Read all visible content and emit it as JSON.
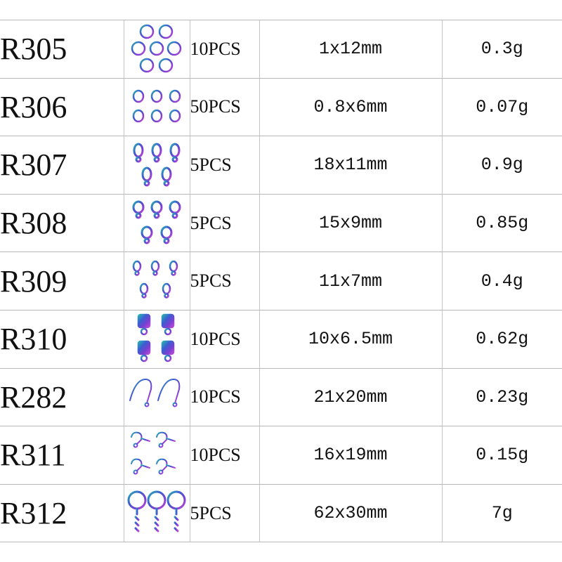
{
  "colors": {
    "rainbow": [
      "#3a7bd5",
      "#7b3fd1",
      "#c04bd6",
      "#2bb5b0",
      "#3a5fd0"
    ]
  },
  "rows": [
    {
      "code": "R305",
      "icon": "jump-ring-icon",
      "qty": "10PCS",
      "size": "1x12mm",
      "weight": "0.3g"
    },
    {
      "code": "R306",
      "icon": "small-jump-ring-icon",
      "qty": "50PCS",
      "size": "0.8x6mm",
      "weight": "0.07g"
    },
    {
      "code": "R307",
      "icon": "lobster-clasp-icon",
      "qty": "5PCS",
      "size": "18x11mm",
      "weight": "0.9g"
    },
    {
      "code": "R308",
      "icon": "lobster-clasp-icon",
      "qty": "5PCS",
      "size": "15x9mm",
      "weight": "0.85g"
    },
    {
      "code": "R309",
      "icon": "lobster-clasp-small-icon",
      "qty": "5PCS",
      "size": "11x7mm",
      "weight": "0.4g"
    },
    {
      "code": "R310",
      "icon": "end-cap-icon",
      "qty": "10PCS",
      "size": "10x6.5mm",
      "weight": "0.62g"
    },
    {
      "code": "R282",
      "icon": "ear-hook-icon",
      "qty": "10PCS",
      "size": "21x20mm",
      "weight": "0.23g"
    },
    {
      "code": "R311",
      "icon": "ear-wire-icon",
      "qty": "10PCS",
      "size": "16x19mm",
      "weight": "0.15g"
    },
    {
      "code": "R312",
      "icon": "key-ring-icon",
      "qty": "5PCS",
      "size": "62x30mm",
      "weight": "7g"
    }
  ]
}
